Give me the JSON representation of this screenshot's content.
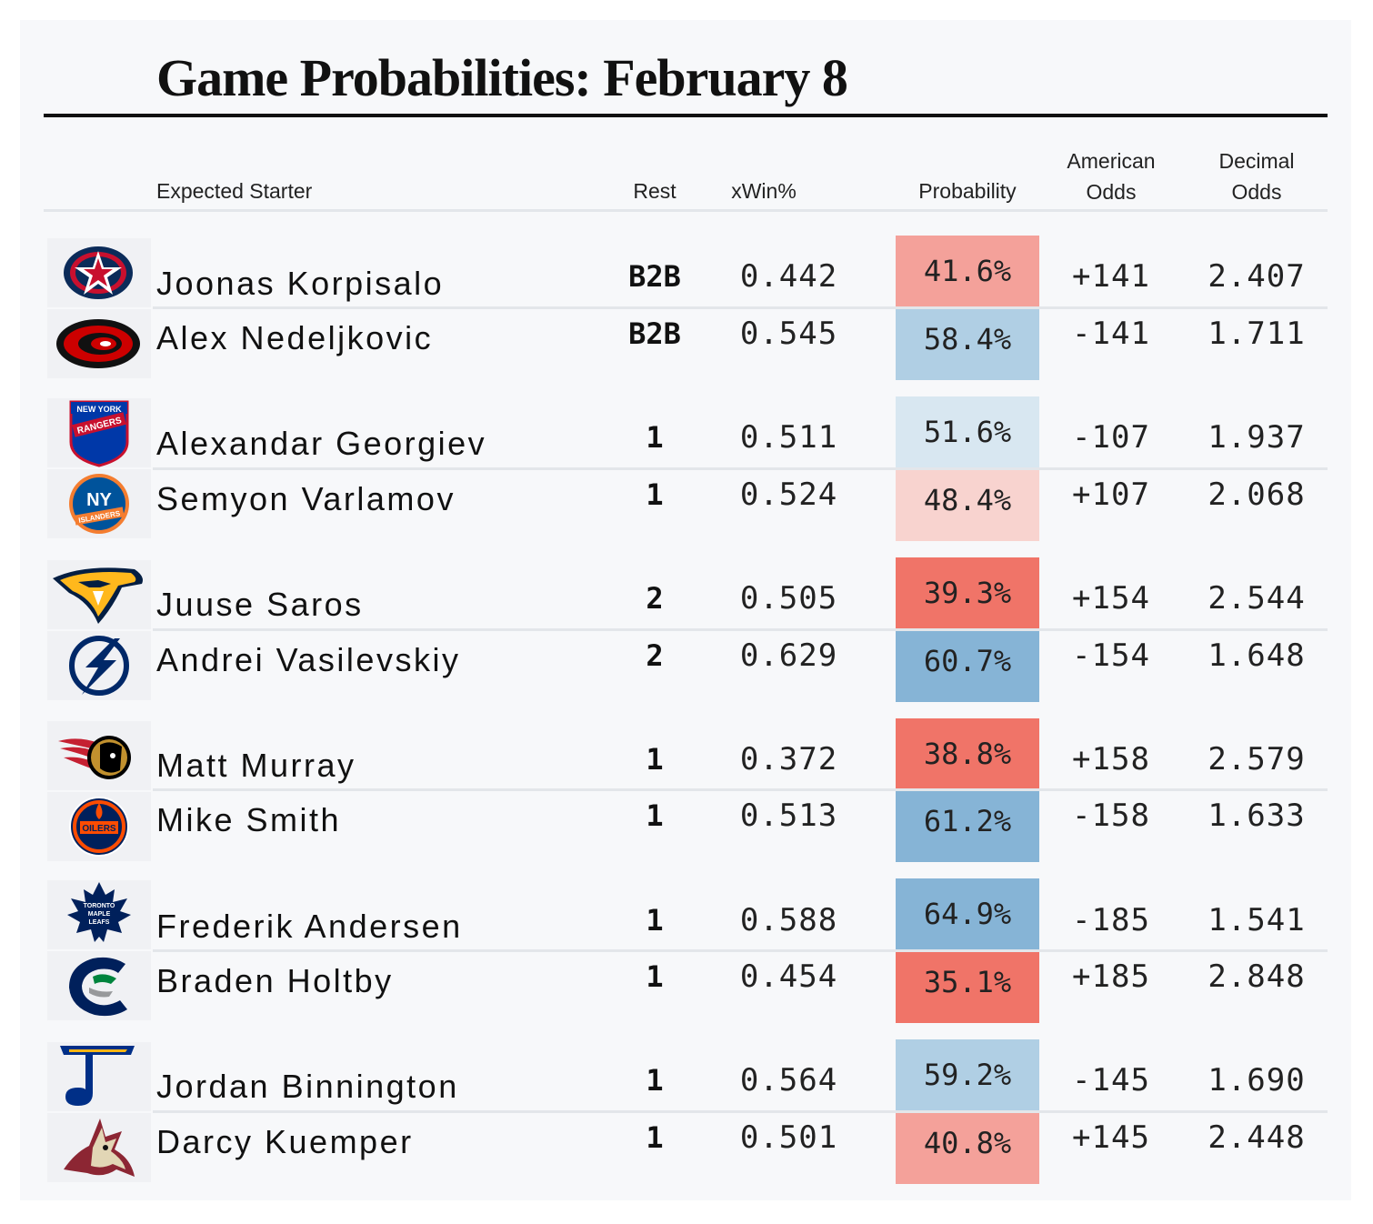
{
  "title": "Game Probabilities: February 8",
  "headers": {
    "starter": "Expected Starter",
    "rest": "Rest",
    "xwin": "xWin%",
    "probability": "Probability",
    "american_line1": "American",
    "american_line2": "Odds",
    "decimal_line1": "Decimal",
    "decimal_line2": "Odds"
  },
  "colors": {
    "card_bg": "#f7f8fa",
    "rule": "#e3e6ea",
    "red_strong": "#f07468",
    "red_mid": "#f4a19a",
    "red_light": "#f8d3cf",
    "blue_strong": "#86b4d6",
    "blue_mid": "#b0cfe4",
    "blue_light": "#d8e7f1"
  },
  "games": [
    {
      "rows": [
        {
          "team_icon": "columbus-blue-jackets-logo-icon",
          "name": "Joonas Korpisalo",
          "rest": "B2B",
          "xwin": "0.442",
          "probability": "41.6%",
          "prob_color": "#f4a19a",
          "american": "+141",
          "decimal": "2.407"
        },
        {
          "team_icon": "carolina-hurricanes-logo-icon",
          "name": "Alex Nedeljkovic",
          "rest": "B2B",
          "xwin": "0.545",
          "probability": "58.4%",
          "prob_color": "#b0cfe4",
          "american": "-141",
          "decimal": "1.711"
        }
      ]
    },
    {
      "rows": [
        {
          "team_icon": "new-york-rangers-logo-icon",
          "name": "Alexandar Georgiev",
          "rest": "1",
          "xwin": "0.511",
          "probability": "51.6%",
          "prob_color": "#d8e7f1",
          "american": "-107",
          "decimal": "1.937"
        },
        {
          "team_icon": "new-york-islanders-logo-icon",
          "name": "Semyon Varlamov",
          "rest": "1",
          "xwin": "0.524",
          "probability": "48.4%",
          "prob_color": "#f8d3cf",
          "american": "+107",
          "decimal": "2.068"
        }
      ]
    },
    {
      "rows": [
        {
          "team_icon": "nashville-predators-logo-icon",
          "name": "Juuse Saros",
          "rest": "2",
          "xwin": "0.505",
          "probability": "39.3%",
          "prob_color": "#f07468",
          "american": "+154",
          "decimal": "2.544"
        },
        {
          "team_icon": "tampa-bay-lightning-logo-icon",
          "name": "Andrei Vasilevskiy",
          "rest": "2",
          "xwin": "0.629",
          "probability": "60.7%",
          "prob_color": "#86b4d6",
          "american": "-154",
          "decimal": "1.648"
        }
      ]
    },
    {
      "rows": [
        {
          "team_icon": "ottawa-senators-logo-icon",
          "name": "Matt Murray",
          "rest": "1",
          "xwin": "0.372",
          "probability": "38.8%",
          "prob_color": "#f07468",
          "american": "+158",
          "decimal": "2.579"
        },
        {
          "team_icon": "edmonton-oilers-logo-icon",
          "name": "Mike Smith",
          "rest": "1",
          "xwin": "0.513",
          "probability": "61.2%",
          "prob_color": "#86b4d6",
          "american": "-158",
          "decimal": "1.633"
        }
      ]
    },
    {
      "rows": [
        {
          "team_icon": "toronto-maple-leafs-logo-icon",
          "name": "Frederik Andersen",
          "rest": "1",
          "xwin": "0.588",
          "probability": "64.9%",
          "prob_color": "#86b4d6",
          "american": "-185",
          "decimal": "1.541"
        },
        {
          "team_icon": "vancouver-canucks-logo-icon",
          "name": "Braden Holtby",
          "rest": "1",
          "xwin": "0.454",
          "probability": "35.1%",
          "prob_color": "#f07468",
          "american": "+185",
          "decimal": "2.848"
        }
      ]
    },
    {
      "rows": [
        {
          "team_icon": "st-louis-blues-logo-icon",
          "name": "Jordan Binnington",
          "rest": "1",
          "xwin": "0.564",
          "probability": "59.2%",
          "prob_color": "#b0cfe4",
          "american": "-145",
          "decimal": "1.690"
        },
        {
          "team_icon": "arizona-coyotes-logo-icon",
          "name": "Darcy Kuemper",
          "rest": "1",
          "xwin": "0.501",
          "probability": "40.8%",
          "prob_color": "#f4a19a",
          "american": "+145",
          "decimal": "2.448"
        }
      ]
    }
  ],
  "logo_text": {
    "rangers_top": "NEW YORK",
    "rangers_main": "RANGERS",
    "islanders_ny": "NY",
    "islanders_word": "ISLANDERS",
    "oilers_word": "OILERS",
    "leafs_l1": "TORONTO",
    "leafs_l2": "MAPLE",
    "leafs_l3": "LEAFS"
  }
}
